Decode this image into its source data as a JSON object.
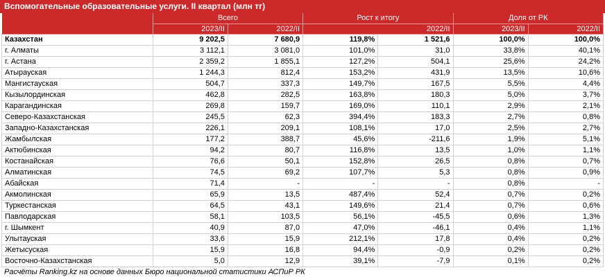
{
  "title": "Вспомогательные образовательные услуги. II квартал (млн тг)",
  "header": {
    "groups": [
      "Всего",
      "Рост к итогу",
      "Доля от РК"
    ],
    "sub": [
      "2023/II",
      "2022/II",
      "2022/II",
      "2023/II",
      "2022/II"
    ]
  },
  "rows": [
    [
      "Казахстан",
      "9 202,5",
      "7 680,9",
      "119,8%",
      "1 521,6",
      "100,0%",
      "100,0%"
    ],
    [
      "г. Алматы",
      "3 112,1",
      "3 081,0",
      "101,0%",
      "31,0",
      "33,8%",
      "40,1%"
    ],
    [
      "г. Астана",
      "2 359,2",
      "1 855,1",
      "127,2%",
      "504,1",
      "25,6%",
      "24,2%"
    ],
    [
      "Атырауская",
      "1 244,3",
      "812,4",
      "153,2%",
      "431,9",
      "13,5%",
      "10,6%"
    ],
    [
      "Мангистауская",
      "504,7",
      "337,3",
      "149,7%",
      "167,5",
      "5,5%",
      "4,4%"
    ],
    [
      "Кызылординская",
      "462,8",
      "282,5",
      "163,8%",
      "180,3",
      "5,0%",
      "3,7%"
    ],
    [
      "Карагандинская",
      "269,8",
      "159,7",
      "169,0%",
      "110,1",
      "2,9%",
      "2,1%"
    ],
    [
      "Северо-Казахстанская",
      "245,5",
      "62,3",
      "394,4%",
      "183,3",
      "2,7%",
      "0,8%"
    ],
    [
      "Западно-Казахстанская",
      "226,1",
      "209,1",
      "108,1%",
      "17,0",
      "2,5%",
      "2,7%"
    ],
    [
      "Жамбылская",
      "177,2",
      "388,7",
      "45,6%",
      "-211,6",
      "1,9%",
      "5,1%"
    ],
    [
      "Актюбинская",
      "94,2",
      "80,7",
      "116,8%",
      "13,5",
      "1,0%",
      "1,1%"
    ],
    [
      "Костанайская",
      "76,6",
      "50,1",
      "152,8%",
      "26,5",
      "0,8%",
      "0,7%"
    ],
    [
      "Алматинская",
      "74,5",
      "69,2",
      "107,7%",
      "5,3",
      "0,8%",
      "0,9%"
    ],
    [
      "Абайская",
      "71,4",
      "-",
      "-",
      "-",
      "0,8%",
      "-"
    ],
    [
      "Акмолинская",
      "65,9",
      "13,5",
      "487,4%",
      "52,4",
      "0,7%",
      "0,2%"
    ],
    [
      "Туркестанская",
      "64,5",
      "43,1",
      "149,6%",
      "21,4",
      "0,7%",
      "0,6%"
    ],
    [
      "Павлодарская",
      "58,1",
      "103,5",
      "56,1%",
      "-45,5",
      "0,6%",
      "1,3%"
    ],
    [
      "г. Шымкент",
      "40,9",
      "87,0",
      "47,0%",
      "-46,1",
      "0,4%",
      "1,1%"
    ],
    [
      "Улытауская",
      "33,6",
      "15,9",
      "212,1%",
      "17,8",
      "0,4%",
      "0,2%"
    ],
    [
      "Жетысуская",
      "15,9",
      "16,8",
      "94,4%",
      "-0,9",
      "0,2%",
      "0,2%"
    ],
    [
      "Восточно-Казахстанская",
      "5,0",
      "12,9",
      "39,1%",
      "-7,9",
      "0,1%",
      "0,2%"
    ]
  ],
  "footer": "Расчёты Ranking.kz на основе данных Бюро национальной статистики АСПиР РК",
  "colors": {
    "header_bg": "#cc2a2a",
    "header_text": "#ffffff"
  }
}
